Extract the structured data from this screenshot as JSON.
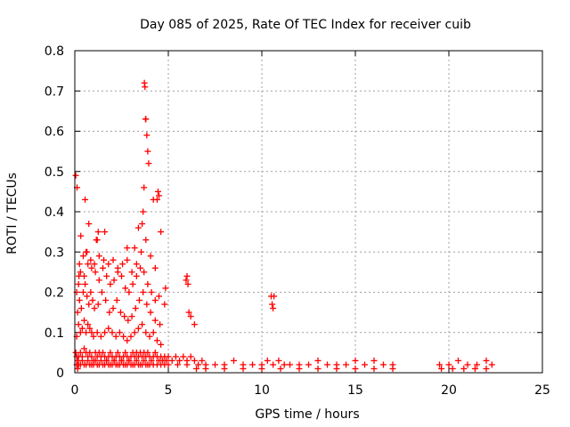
{
  "chart_data": {
    "type": "scatter",
    "title": "Day 085 of 2025, Rate Of TEC Index for receiver cuib",
    "xlabel": "GPS time / hours",
    "ylabel": "ROTI / TECUs",
    "xlim": [
      0,
      25
    ],
    "ylim": [
      0,
      0.8
    ],
    "xticks": [
      0,
      5,
      10,
      15,
      20,
      25
    ],
    "xtick_labels": [
      "0",
      "5",
      "10",
      "15",
      "20",
      "25"
    ],
    "yticks": [
      0,
      0.1,
      0.2,
      0.3,
      0.4,
      0.5,
      0.6,
      0.7,
      0.8
    ],
    "ytick_labels": [
      "0",
      "0.1",
      "0.2",
      "0.3",
      "0.4",
      "0.5",
      "0.6",
      "0.7",
      "0.8"
    ],
    "grid": true,
    "marker": "+",
    "color": "#ff0000",
    "series": [
      {
        "name": "ROTI",
        "x": [
          0.05,
          0.1,
          0.15,
          0.2,
          0.3,
          0.4,
          0.5,
          0.6,
          0.7,
          0.8,
          0.9,
          1.0,
          1.1,
          1.2,
          1.3,
          1.4,
          1.5,
          1.6,
          1.7,
          1.8,
          1.9,
          2.0,
          2.1,
          2.2,
          2.3,
          2.4,
          2.5,
          2.6,
          2.7,
          2.8,
          2.9,
          3.0,
          3.1,
          3.2,
          3.3,
          3.4,
          3.5,
          3.6,
          3.7,
          3.8,
          3.9,
          4.0,
          4.1,
          4.2,
          4.3,
          4.4,
          4.5,
          4.6,
          4.7,
          4.8,
          4.9,
          5.0,
          5.2,
          5.4,
          5.6,
          5.8,
          6.0,
          6.2,
          6.4,
          6.6,
          6.8,
          7.0,
          7.5,
          8.0,
          8.5,
          9.0,
          9.5,
          10.0,
          10.3,
          10.6,
          10.9,
          11.2,
          11.5,
          12.0,
          12.5,
          13.0,
          13.5,
          14.0,
          14.5,
          15.0,
          15.5,
          16.0,
          16.5,
          17.0,
          19.5,
          20.0,
          20.5,
          21.0,
          21.5,
          22.0,
          22.3,
          0.1,
          0.15,
          0.2,
          0.3,
          0.4,
          0.5,
          0.6,
          0.7,
          0.8,
          0.9,
          1.0,
          1.1,
          1.2,
          1.3,
          1.4,
          1.5,
          1.6,
          1.7,
          1.8,
          1.9,
          2.0,
          2.1,
          2.2,
          2.3,
          2.4,
          2.5,
          2.6,
          2.7,
          2.8,
          2.9,
          3.0,
          3.1,
          3.2,
          3.3,
          3.4,
          3.5,
          3.6,
          3.7,
          3.8,
          3.9,
          4.0,
          4.2,
          4.4,
          4.6,
          4.8,
          5.0,
          5.5,
          6.0,
          6.5,
          7.0,
          8.0,
          9.0,
          10.0,
          11.0,
          12.0,
          13.0,
          14.0,
          15.0,
          16.0,
          17.0,
          19.6,
          20.2,
          20.8,
          21.4,
          22.0,
          0.1,
          0.2,
          0.3,
          0.4,
          0.5,
          0.6,
          0.7,
          0.8,
          0.9,
          1.0,
          1.2,
          1.4,
          1.6,
          1.8,
          2.0,
          2.2,
          2.4,
          2.6,
          2.8,
          3.0,
          3.2,
          3.4,
          3.6,
          3.8,
          4.0,
          4.2,
          4.4,
          4.6,
          0.15,
          0.25,
          0.35,
          0.45,
          0.55,
          0.65,
          0.75,
          0.85,
          0.95,
          1.05,
          1.25,
          1.45,
          1.65,
          1.85,
          2.05,
          2.25,
          2.45,
          2.65,
          2.85,
          3.05,
          3.25,
          3.45,
          3.65,
          3.85,
          4.05,
          4.3,
          4.55,
          0.2,
          0.3,
          0.5,
          0.7,
          0.9,
          1.1,
          1.3,
          1.5,
          1.7,
          1.9,
          2.1,
          2.3,
          2.5,
          2.7,
          2.9,
          3.1,
          3.3,
          3.5,
          3.7,
          3.9,
          4.1,
          4.3,
          4.5,
          0.25,
          0.45,
          0.65,
          0.85,
          1.05,
          1.3,
          1.55,
          1.8,
          2.05,
          2.3,
          2.55,
          2.8,
          3.05,
          3.3,
          3.55,
          3.8,
          4.05,
          4.3,
          0.05,
          0.12,
          0.32,
          0.55,
          0.75,
          1.15,
          1.6,
          3.2,
          3.6,
          3.72,
          3.75,
          3.78,
          3.8,
          3.85,
          3.9,
          3.95,
          4.2,
          4.4,
          4.45,
          4.5,
          5.95,
          6.0,
          6.05,
          6.1,
          6.2,
          6.4,
          10.5,
          10.55,
          10.6,
          10.65,
          0.1,
          0.22,
          0.6,
          1.2,
          1.25,
          2.8,
          3.4,
          3.65,
          3.7,
          4.6,
          4.8,
          4.85
        ],
        "y": [
          0.05,
          0.04,
          0.03,
          0.04,
          0.05,
          0.04,
          0.06,
          0.05,
          0.04,
          0.05,
          0.04,
          0.03,
          0.05,
          0.04,
          0.05,
          0.04,
          0.05,
          0.04,
          0.03,
          0.04,
          0.05,
          0.04,
          0.03,
          0.04,
          0.05,
          0.04,
          0.03,
          0.04,
          0.05,
          0.04,
          0.03,
          0.04,
          0.05,
          0.04,
          0.05,
          0.04,
          0.05,
          0.04,
          0.05,
          0.04,
          0.05,
          0.04,
          0.03,
          0.04,
          0.05,
          0.04,
          0.03,
          0.04,
          0.03,
          0.04,
          0.03,
          0.04,
          0.03,
          0.04,
          0.03,
          0.04,
          0.03,
          0.04,
          0.03,
          0.02,
          0.03,
          0.02,
          0.02,
          0.02,
          0.03,
          0.02,
          0.02,
          0.02,
          0.03,
          0.02,
          0.03,
          0.02,
          0.02,
          0.02,
          0.02,
          0.03,
          0.02,
          0.02,
          0.02,
          0.03,
          0.02,
          0.03,
          0.02,
          0.02,
          0.02,
          0.02,
          0.03,
          0.02,
          0.02,
          0.03,
          0.02,
          0.02,
          0.01,
          0.02,
          0.02,
          0.03,
          0.02,
          0.02,
          0.03,
          0.02,
          0.02,
          0.02,
          0.03,
          0.02,
          0.02,
          0.03,
          0.02,
          0.02,
          0.03,
          0.02,
          0.02,
          0.02,
          0.03,
          0.02,
          0.02,
          0.02,
          0.03,
          0.02,
          0.02,
          0.02,
          0.03,
          0.02,
          0.02,
          0.02,
          0.03,
          0.02,
          0.02,
          0.02,
          0.03,
          0.02,
          0.02,
          0.02,
          0.02,
          0.02,
          0.02,
          0.02,
          0.02,
          0.02,
          0.02,
          0.01,
          0.01,
          0.01,
          0.01,
          0.01,
          0.01,
          0.01,
          0.01,
          0.01,
          0.01,
          0.01,
          0.01,
          0.01,
          0.01,
          0.01,
          0.01,
          0.01,
          0.09,
          0.12,
          0.1,
          0.11,
          0.13,
          0.1,
          0.12,
          0.11,
          0.1,
          0.09,
          0.1,
          0.09,
          0.1,
          0.11,
          0.1,
          0.09,
          0.1,
          0.09,
          0.08,
          0.09,
          0.1,
          0.11,
          0.12,
          0.1,
          0.09,
          0.1,
          0.08,
          0.07,
          0.15,
          0.18,
          0.16,
          0.2,
          0.22,
          0.19,
          0.17,
          0.2,
          0.18,
          0.16,
          0.17,
          0.2,
          0.18,
          0.15,
          0.16,
          0.18,
          0.15,
          0.14,
          0.13,
          0.14,
          0.16,
          0.18,
          0.2,
          0.17,
          0.15,
          0.13,
          0.12,
          0.22,
          0.25,
          0.24,
          0.27,
          0.26,
          0.25,
          0.23,
          0.26,
          0.24,
          0.22,
          0.23,
          0.25,
          0.24,
          0.21,
          0.2,
          0.22,
          0.24,
          0.26,
          0.25,
          0.22,
          0.2,
          0.18,
          0.19,
          0.27,
          0.29,
          0.3,
          0.28,
          0.27,
          0.29,
          0.28,
          0.27,
          0.28,
          0.26,
          0.27,
          0.28,
          0.25,
          0.27,
          0.3,
          0.33,
          0.29,
          0.26,
          0.49,
          0.46,
          0.34,
          0.43,
          0.37,
          0.33,
          0.35,
          0.31,
          0.37,
          0.72,
          0.71,
          0.63,
          0.63,
          0.59,
          0.55,
          0.52,
          0.43,
          0.43,
          0.45,
          0.44,
          0.23,
          0.24,
          0.22,
          0.15,
          0.14,
          0.12,
          0.19,
          0.17,
          0.16,
          0.19,
          0.2,
          0.24,
          0.3,
          0.33,
          0.35,
          0.31,
          0.36,
          0.4,
          0.46,
          0.35,
          0.17,
          0.21
        ]
      }
    ]
  }
}
